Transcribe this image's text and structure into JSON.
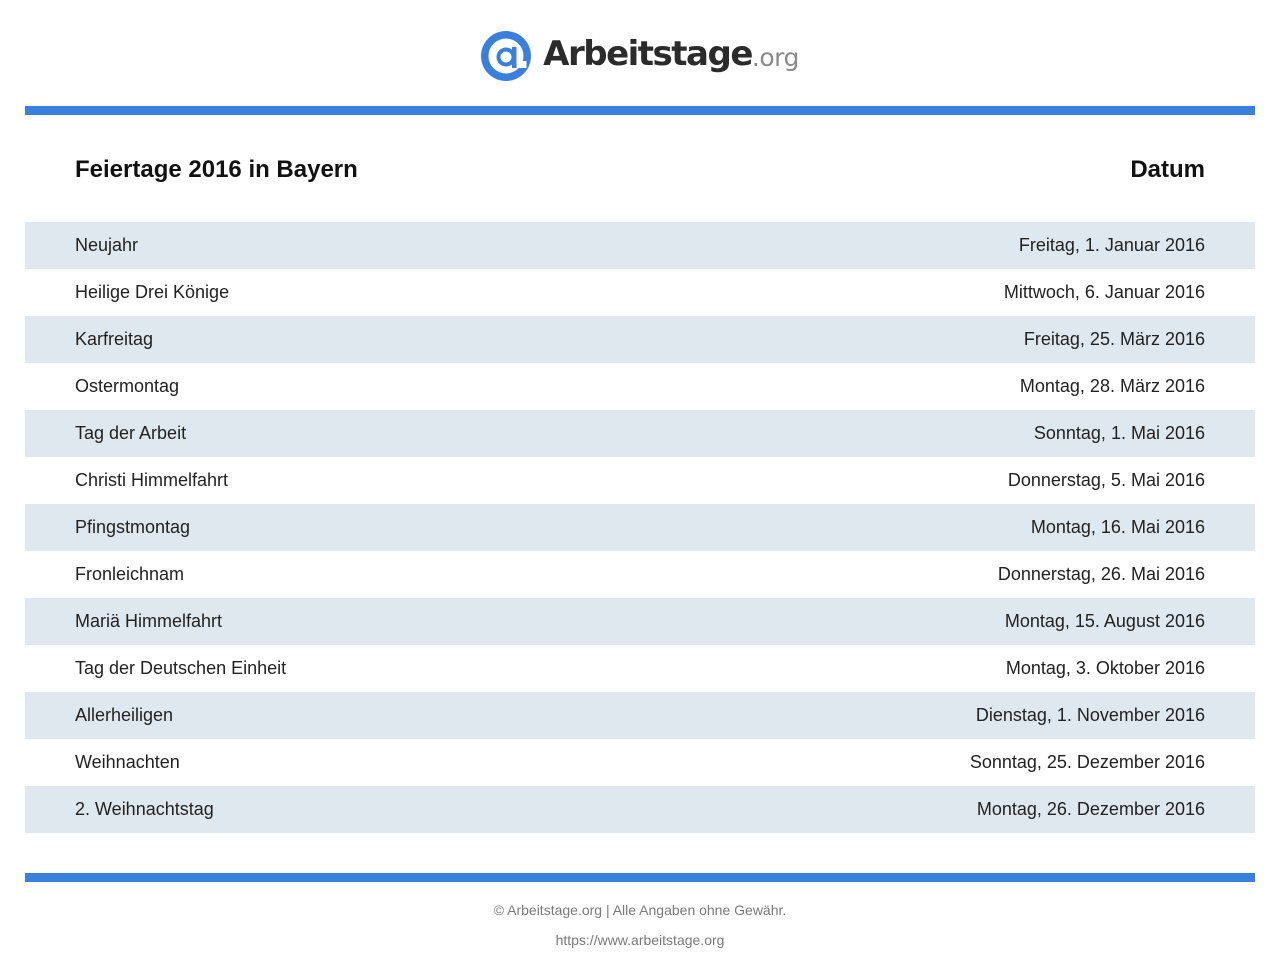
{
  "brand": {
    "name": "Arbeitstage",
    "suffix": ".org",
    "color": "#3b7fdc"
  },
  "table_header": {
    "title": "Feiertage 2016 in Bayern",
    "date_col": "Datum"
  },
  "rows": [
    {
      "name": "Neujahr",
      "date": "Freitag, 1. Januar 2016"
    },
    {
      "name": "Heilige Drei Könige",
      "date": "Mittwoch, 6. Januar 2016"
    },
    {
      "name": "Karfreitag",
      "date": "Freitag, 25. März 2016"
    },
    {
      "name": "Ostermontag",
      "date": "Montag, 28. März 2016"
    },
    {
      "name": "Tag der Arbeit",
      "date": "Sonntag, 1. Mai 2016"
    },
    {
      "name": "Christi Himmelfahrt",
      "date": "Donnerstag, 5. Mai 2016"
    },
    {
      "name": "Pfingstmontag",
      "date": "Montag, 16. Mai 2016"
    },
    {
      "name": "Fronleichnam",
      "date": "Donnerstag, 26. Mai 2016"
    },
    {
      "name": "Mariä Himmelfahrt",
      "date": "Montag, 15. August 2016"
    },
    {
      "name": "Tag der Deutschen Einheit",
      "date": "Montag, 3. Oktober 2016"
    },
    {
      "name": "Allerheiligen",
      "date": "Dienstag, 1. November 2016"
    },
    {
      "name": "Weihnachten",
      "date": "Sonntag, 25. Dezember 2016"
    },
    {
      "name": "2. Weihnachtstag",
      "date": "Montag, 26. Dezember 2016"
    }
  ],
  "footer": {
    "copyright": "© Arbeitstage.org | Alle Angaben ohne Gewähr.",
    "url": "https://www.arbeitstage.org"
  }
}
